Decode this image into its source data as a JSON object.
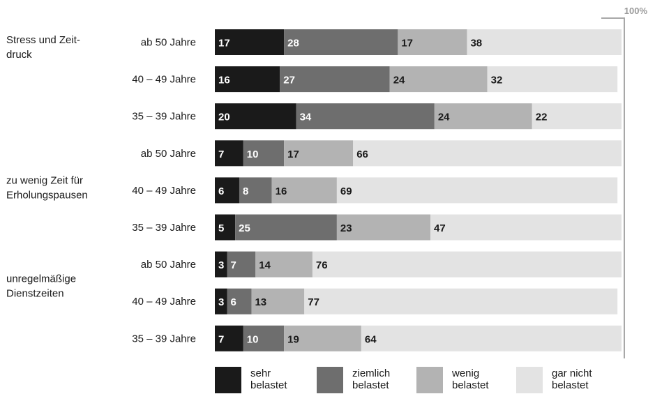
{
  "chart_data": {
    "type": "bar",
    "orientation": "horizontal",
    "stacked": true,
    "unit": "%",
    "xlim": [
      0,
      100
    ],
    "max_label": "100%",
    "groups": [
      {
        "label": [
          "Stress und Zeit-",
          "druck"
        ],
        "rows": [
          {
            "label": "ab 50 Jahre",
            "values": [
              17,
              28,
              17,
              38
            ]
          },
          {
            "label": "40 – 49 Jahre",
            "values": [
              16,
              27,
              24,
              32
            ]
          },
          {
            "label": "35 – 39 Jahre",
            "values": [
              20,
              34,
              24,
              22
            ]
          }
        ]
      },
      {
        "label": [
          "zu wenig Zeit für",
          "Erholungspausen"
        ],
        "rows": [
          {
            "label": "ab 50 Jahre",
            "values": [
              7,
              10,
              17,
              66
            ]
          },
          {
            "label": "40 – 49 Jahre",
            "values": [
              6,
              8,
              16,
              69
            ]
          },
          {
            "label": "35 – 39 Jahre",
            "values": [
              5,
              25,
              23,
              47
            ]
          }
        ]
      },
      {
        "label": [
          "unregelmäßige",
          "Dienstzeiten"
        ],
        "rows": [
          {
            "label": "ab 50 Jahre",
            "values": [
              3,
              7,
              14,
              76
            ]
          },
          {
            "label": "40 – 49 Jahre",
            "values": [
              3,
              6,
              13,
              77
            ]
          },
          {
            "label": "35 – 39 Jahre",
            "values": [
              7,
              10,
              19,
              64
            ]
          }
        ]
      }
    ],
    "series": [
      {
        "name": [
          "sehr",
          "belastet"
        ],
        "color": "#1a1a1a",
        "label_color": "#ffffff"
      },
      {
        "name": [
          "ziemlich",
          "belastet"
        ],
        "color": "#6e6e6e",
        "label_color": "#ffffff"
      },
      {
        "name": [
          "wenig",
          "belastet"
        ],
        "color": "#b3b3b3",
        "label_color": "#1a1a1a"
      },
      {
        "name": [
          "gar nicht",
          "belastet"
        ],
        "color": "#e3e3e3",
        "label_color": "#1a1a1a"
      }
    ],
    "legend": "bottom"
  }
}
